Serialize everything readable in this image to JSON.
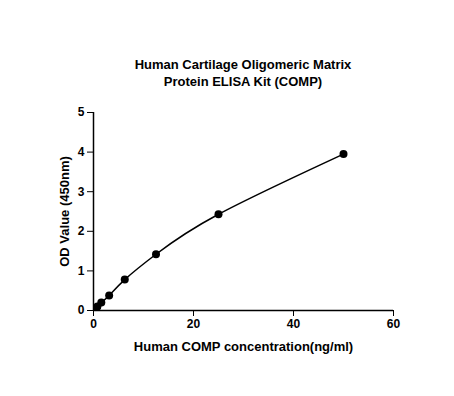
{
  "chart_data": {
    "type": "line",
    "title": "Human Cartilage Oligomeric Matrix Protein ELISA Kit (COMP)",
    "x_label": "Human COMP concentration(ng/ml)",
    "y_label": "OD Value (450nm)",
    "x": [
      0,
      0.78,
      1.56,
      3.13,
      6.25,
      12.5,
      25,
      50
    ],
    "values": [
      0.02,
      0.1,
      0.2,
      0.38,
      0.78,
      1.42,
      2.43,
      3.95
    ],
    "color": "#000000",
    "marker": "circle",
    "line_style": "solid",
    "xlim": [
      0,
      60
    ],
    "xticks": [
      0,
      20,
      40,
      60
    ],
    "ylim": [
      0,
      5
    ],
    "yticks": [
      0,
      1,
      2,
      3,
      4,
      5
    ],
    "grid": false
  }
}
